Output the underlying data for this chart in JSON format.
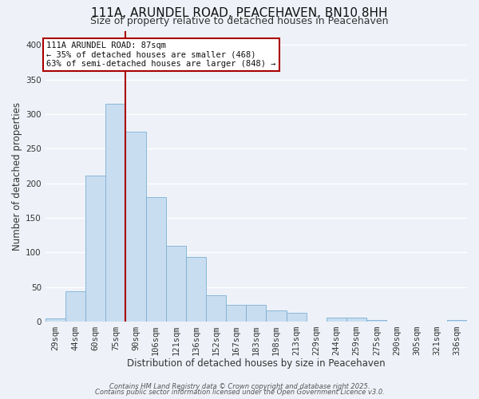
{
  "title": "111A, ARUNDEL ROAD, PEACEHAVEN, BN10 8HH",
  "subtitle": "Size of property relative to detached houses in Peacehaven",
  "xlabel": "Distribution of detached houses by size in Peacehaven",
  "ylabel": "Number of detached properties",
  "bar_labels": [
    "29sqm",
    "44sqm",
    "60sqm",
    "75sqm",
    "90sqm",
    "106sqm",
    "121sqm",
    "136sqm",
    "152sqm",
    "167sqm",
    "183sqm",
    "198sqm",
    "213sqm",
    "229sqm",
    "244sqm",
    "259sqm",
    "275sqm",
    "290sqm",
    "305sqm",
    "321sqm",
    "336sqm"
  ],
  "bar_values": [
    5,
    44,
    211,
    315,
    275,
    180,
    110,
    93,
    38,
    24,
    24,
    16,
    13,
    0,
    6,
    6,
    2,
    0,
    0,
    0,
    2
  ],
  "bar_color": "#c9ddf0",
  "bar_edge_color": "#7bafd4",
  "vline_x_index": 4,
  "vline_color": "#aa0000",
  "ylim": [
    0,
    420
  ],
  "yticks": [
    0,
    50,
    100,
    150,
    200,
    250,
    300,
    350,
    400
  ],
  "annotation_title": "111A ARUNDEL ROAD: 87sqm",
  "annotation_line1": "← 35% of detached houses are smaller (468)",
  "annotation_line2": "63% of semi-detached houses are larger (848) →",
  "footer1": "Contains HM Land Registry data © Crown copyright and database right 2025.",
  "footer2": "Contains public sector information licensed under the Open Government Licence v3.0.",
  "background_color": "#eef2f8",
  "plot_background": "#eef2f8",
  "grid_color": "#ffffff",
  "title_fontsize": 11,
  "subtitle_fontsize": 9,
  "axis_label_fontsize": 8.5,
  "tick_fontsize": 7.5,
  "annotation_fontsize": 7.5
}
